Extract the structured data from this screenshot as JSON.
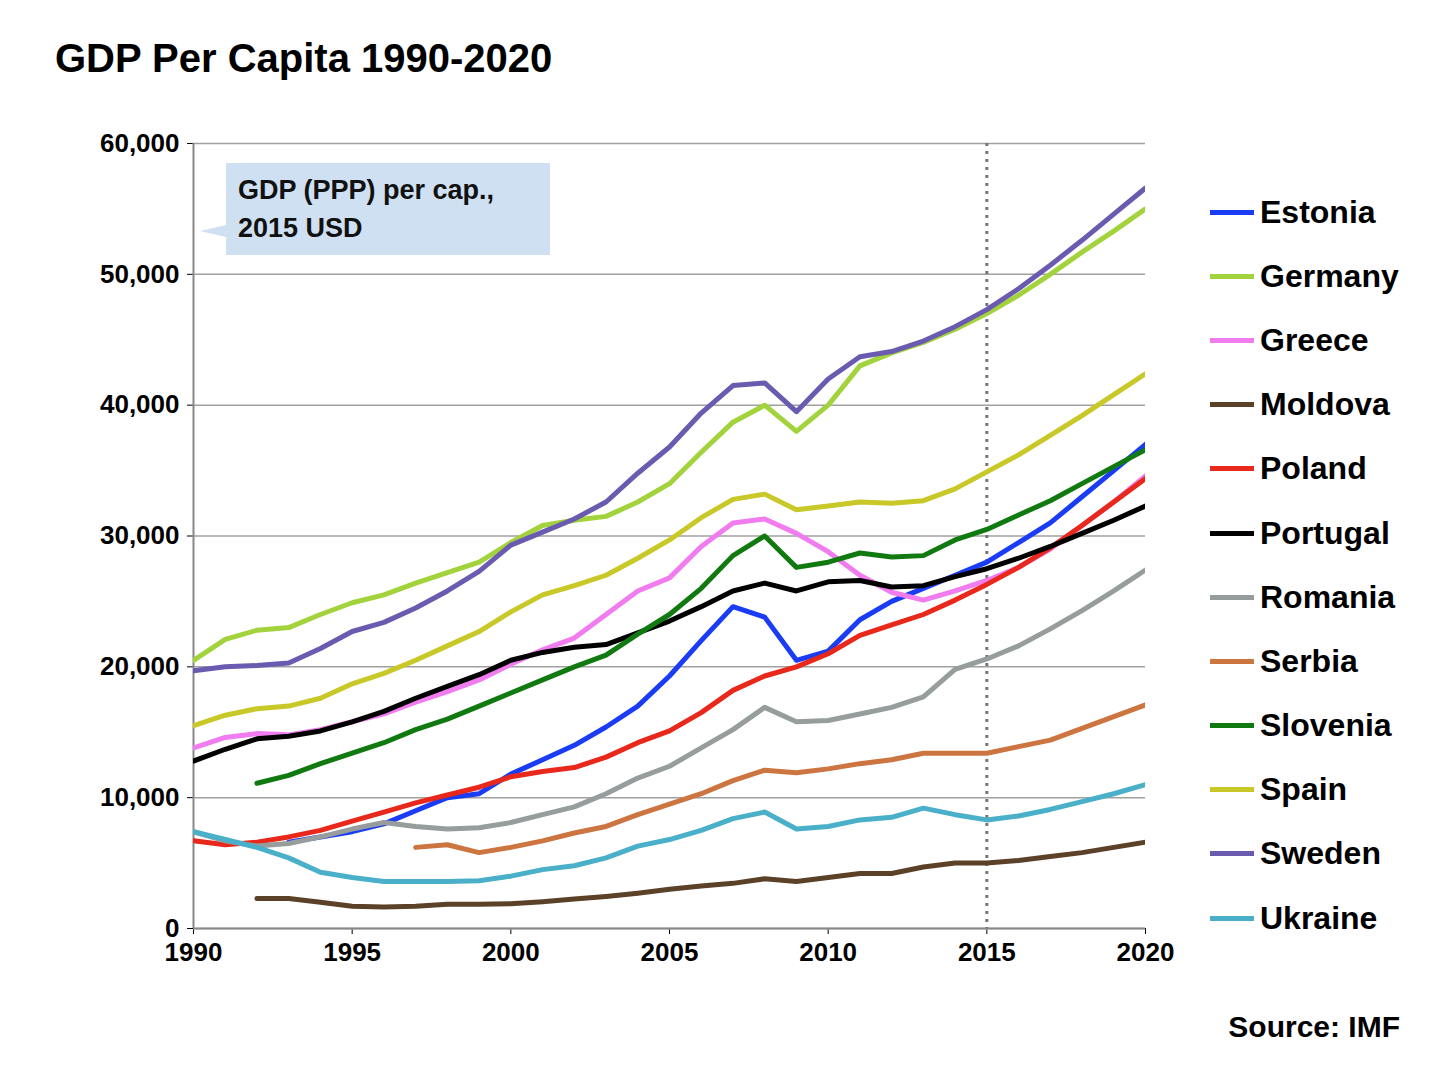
{
  "chart_data": {
    "type": "line",
    "title": "GDP Per Capita 1990-2020",
    "annotation": "GDP (PPP) per cap., 2015 USD",
    "caption": "Source: IMF",
    "x": [
      1990,
      1991,
      1992,
      1993,
      1994,
      1995,
      1996,
      1997,
      1998,
      1999,
      2000,
      2001,
      2002,
      2003,
      2004,
      2005,
      2006,
      2007,
      2008,
      2009,
      2010,
      2011,
      2012,
      2013,
      2014,
      2015,
      2016,
      2017,
      2018,
      2019,
      2020
    ],
    "xlim": [
      1990,
      2020
    ],
    "xticks": [
      1990,
      1995,
      2000,
      2005,
      2010,
      2015,
      2020
    ],
    "ylim": [
      0,
      60000
    ],
    "yticks": [
      0,
      {
        "value": 10000,
        "label": "10,000"
      },
      {
        "value": 20000,
        "label": "20,000"
      },
      {
        "value": 30000,
        "label": "30,000"
      },
      {
        "value": 40000,
        "label": "40,000"
      },
      {
        "value": 50000,
        "label": "50,000"
      },
      {
        "value": 60000,
        "label": "60,000"
      }
    ],
    "grid": true,
    "legend": "right",
    "vline": 2015,
    "series": [
      {
        "name": "Estonia",
        "color": "#1a3cf5",
        "values": [
          null,
          null,
          null,
          6600,
          7000,
          7400,
          8000,
          9000,
          10000,
          10300,
          11800,
          12900,
          14000,
          15400,
          17000,
          19300,
          22000,
          24600,
          23800,
          20500,
          21200,
          23600,
          25000,
          26000,
          27000,
          28000,
          29500,
          31000,
          33000,
          35000,
          37000
        ]
      },
      {
        "name": "Germany",
        "color": "#a3d33c",
        "values": [
          20500,
          22100,
          22800,
          23000,
          24000,
          24900,
          25500,
          26400,
          27200,
          28000,
          29500,
          30800,
          31200,
          31500,
          32600,
          34000,
          36400,
          38700,
          40000,
          38000,
          40000,
          43000,
          44000,
          44800,
          45800,
          47000,
          48400,
          50000,
          51700,
          53300,
          55000
        ]
      },
      {
        "name": "Greece",
        "color": "#f07cf0",
        "values": [
          13800,
          14600,
          14900,
          14800,
          15200,
          15800,
          16400,
          17300,
          18100,
          19000,
          20200,
          21300,
          22200,
          24000,
          25800,
          26800,
          29200,
          31000,
          31300,
          30200,
          28800,
          27000,
          25700,
          25100,
          25800,
          26600,
          27600,
          29000,
          30800,
          32600,
          34600
        ]
      },
      {
        "name": "Moldova",
        "color": "#5c4129",
        "values": [
          null,
          null,
          2300,
          2300,
          2000,
          1700,
          1650,
          1700,
          1850,
          1850,
          1900,
          2050,
          2250,
          2450,
          2700,
          3000,
          3250,
          3450,
          3800,
          3600,
          3900,
          4200,
          4200,
          4700,
          5000,
          5000,
          5200,
          5500,
          5800,
          6200,
          6600
        ]
      },
      {
        "name": "Poland",
        "color": "#e8281a",
        "values": [
          6700,
          6400,
          6600,
          7000,
          7500,
          8200,
          8900,
          9600,
          10200,
          10800,
          11600,
          12000,
          12300,
          13100,
          14200,
          15100,
          16500,
          18200,
          19300,
          20000,
          21000,
          22400,
          23200,
          24000,
          25100,
          26300,
          27600,
          29100,
          30800,
          32600,
          34400
        ]
      },
      {
        "name": "Portugal",
        "color": "#000000",
        "values": [
          12800,
          13700,
          14500,
          14700,
          15100,
          15800,
          16600,
          17600,
          18500,
          19400,
          20500,
          21100,
          21500,
          21700,
          22600,
          23500,
          24600,
          25800,
          26400,
          25800,
          26500,
          26600,
          26100,
          26200,
          26900,
          27500,
          28300,
          29200,
          30200,
          31200,
          32300
        ]
      },
      {
        "name": "Romania",
        "color": "#979c9c",
        "values": [
          7400,
          6700,
          6300,
          6500,
          7000,
          7600,
          8100,
          7800,
          7600,
          7700,
          8100,
          8700,
          9300,
          10300,
          11500,
          12400,
          13800,
          15200,
          16900,
          15800,
          15900,
          16400,
          16900,
          17700,
          19800,
          20600,
          21600,
          22900,
          24300,
          25800,
          27400
        ]
      },
      {
        "name": "Serbia",
        "color": "#cd7540",
        "values": [
          null,
          null,
          null,
          null,
          null,
          null,
          null,
          6200,
          6400,
          5800,
          6200,
          6700,
          7300,
          7800,
          8700,
          9500,
          10300,
          11300,
          12100,
          11900,
          12200,
          12600,
          12900,
          13400,
          13400,
          13400,
          13900,
          14400,
          15300,
          16200,
          17100
        ]
      },
      {
        "name": "Slovenia",
        "color": "#107a10",
        "values": [
          null,
          null,
          11100,
          11700,
          12600,
          13400,
          14200,
          15200,
          16000,
          17000,
          18000,
          19000,
          20000,
          20900,
          22500,
          24000,
          26000,
          28500,
          30000,
          27600,
          28000,
          28700,
          28400,
          28500,
          29700,
          30500,
          31600,
          32700,
          34000,
          35300,
          36600
        ]
      },
      {
        "name": "Spain",
        "color": "#c8c828",
        "values": [
          15500,
          16300,
          16800,
          17000,
          17600,
          18700,
          19500,
          20500,
          21600,
          22700,
          24200,
          25500,
          26200,
          27000,
          28300,
          29700,
          31400,
          32800,
          33200,
          32000,
          32300,
          32600,
          32500,
          32700,
          33600,
          34900,
          36200,
          37700,
          39200,
          40800,
          42400
        ]
      },
      {
        "name": "Sweden",
        "color": "#6b5bb0",
        "values": [
          19700,
          20000,
          20100,
          20300,
          21400,
          22700,
          23400,
          24500,
          25800,
          27300,
          29300,
          30300,
          31300,
          32600,
          34800,
          36800,
          39400,
          41500,
          41700,
          39500,
          42000,
          43700,
          44100,
          44900,
          46000,
          47300,
          48900,
          50700,
          52600,
          54600,
          56600
        ]
      },
      {
        "name": "Ukraine",
        "color": "#4aafc8",
        "values": [
          7400,
          6800,
          6200,
          5400,
          4300,
          3900,
          3600,
          3600,
          3600,
          3650,
          4000,
          4500,
          4800,
          5400,
          6300,
          6800,
          7500,
          8400,
          8900,
          7600,
          7800,
          8300,
          8500,
          9200,
          8700,
          8300,
          8600,
          9100,
          9700,
          10300,
          11000
        ]
      }
    ]
  }
}
